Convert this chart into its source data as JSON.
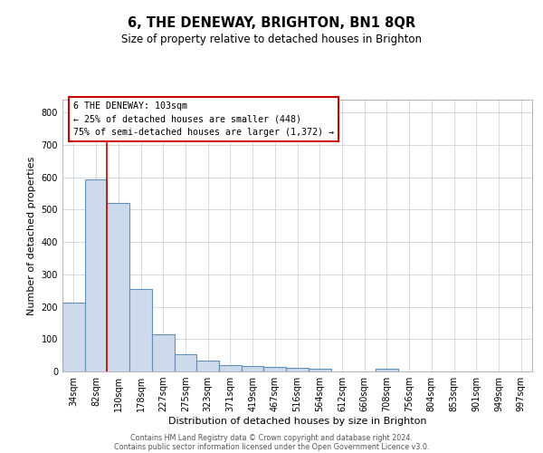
{
  "title": "6, THE DENEWAY, BRIGHTON, BN1 8QR",
  "subtitle": "Size of property relative to detached houses in Brighton",
  "xlabel": "Distribution of detached houses by size in Brighton",
  "ylabel": "Number of detached properties",
  "bar_labels": [
    "34sqm",
    "82sqm",
    "130sqm",
    "178sqm",
    "227sqm",
    "275sqm",
    "323sqm",
    "371sqm",
    "419sqm",
    "467sqm",
    "516sqm",
    "564sqm",
    "612sqm",
    "660sqm",
    "708sqm",
    "756sqm",
    "804sqm",
    "853sqm",
    "901sqm",
    "949sqm",
    "997sqm"
  ],
  "bar_values": [
    213,
    593,
    520,
    255,
    115,
    54,
    33,
    20,
    18,
    13,
    10,
    8,
    0,
    0,
    8,
    0,
    0,
    0,
    0,
    0,
    0
  ],
  "bar_color": "#ccdaeb",
  "bar_edge_color": "#6090b8",
  "grid_color": "#ccd4e0",
  "background_color": "#ffffff",
  "vline_x_index": 1,
  "vline_color": "#cc0000",
  "annotation_text": "6 THE DENEWAY: 103sqm\n← 25% of detached houses are smaller (448)\n75% of semi-detached houses are larger (1,372) →",
  "annotation_box_color": "#cc0000",
  "ylim": [
    0,
    840
  ],
  "yticks": [
    0,
    100,
    200,
    300,
    400,
    500,
    600,
    700,
    800
  ],
  "footer_line1": "Contains HM Land Registry data © Crown copyright and database right 2024.",
  "footer_line2": "Contains public sector information licensed under the Open Government Licence v3.0."
}
